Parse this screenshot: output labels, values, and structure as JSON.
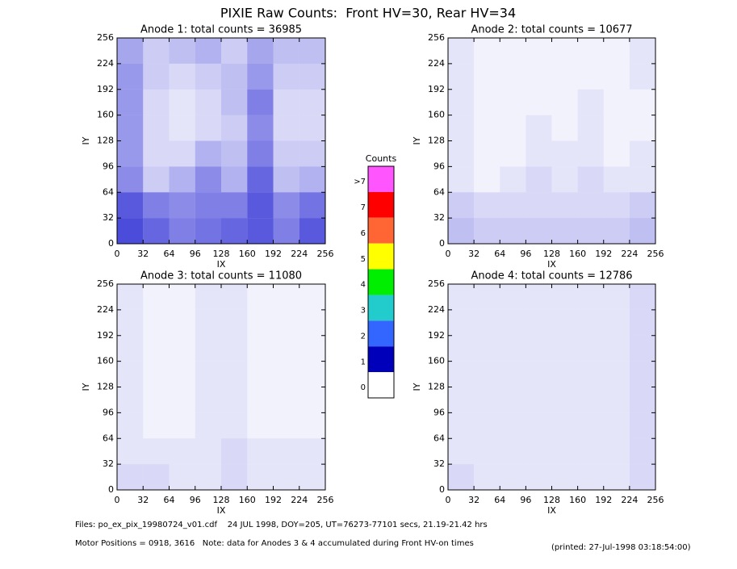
{
  "title": "PIXIE Raw Counts:  Front HV=30, Rear HV=34",
  "chart_data": [
    {
      "type": "heatmap",
      "title": "Anode 1: total counts = 36985",
      "x_label": "IX",
      "y_label": "IY",
      "xlim": [
        0,
        256
      ],
      "ylim": [
        0,
        256
      ],
      "xticks": [
        0,
        32,
        64,
        96,
        128,
        160,
        192,
        224,
        256
      ],
      "yticks": [
        0,
        32,
        64,
        96,
        128,
        160,
        192,
        224,
        256
      ],
      "color": "#0000cc",
      "z": [
        [
          1.4,
          1.2,
          1.0,
          1.1,
          1.2,
          1.3,
          1.0,
          1.3
        ],
        [
          1.3,
          1.0,
          0.9,
          1.0,
          1.0,
          1.3,
          0.9,
          1.1
        ],
        [
          0.9,
          0.4,
          0.6,
          0.9,
          0.6,
          1.2,
          0.5,
          0.6
        ],
        [
          0.8,
          0.3,
          0.3,
          0.6,
          0.5,
          1.0,
          0.4,
          0.4
        ],
        [
          0.8,
          0.3,
          0.2,
          0.3,
          0.4,
          0.9,
          0.3,
          0.3
        ],
        [
          0.8,
          0.3,
          0.2,
          0.3,
          0.5,
          1.0,
          0.3,
          0.3
        ],
        [
          0.8,
          0.4,
          0.3,
          0.4,
          0.5,
          0.8,
          0.4,
          0.4
        ],
        [
          0.7,
          0.4,
          0.5,
          0.6,
          0.4,
          0.7,
          0.5,
          0.5
        ]
      ]
    },
    {
      "type": "heatmap",
      "title": "Anode 2: total counts = 10677",
      "x_label": "IX",
      "y_label": "IY",
      "xlim": [
        0,
        256
      ],
      "ylim": [
        0,
        256
      ],
      "xticks": [
        0,
        32,
        64,
        96,
        128,
        160,
        192,
        224,
        256
      ],
      "yticks": [
        0,
        32,
        64,
        96,
        128,
        160,
        192,
        224,
        256
      ],
      "color": "#0000cc",
      "z": [
        [
          0.5,
          0.4,
          0.4,
          0.4,
          0.4,
          0.4,
          0.4,
          0.5
        ],
        [
          0.4,
          0.3,
          0.3,
          0.3,
          0.3,
          0.3,
          0.3,
          0.4
        ],
        [
          0.2,
          0.1,
          0.2,
          0.3,
          0.2,
          0.3,
          0.2,
          0.2
        ],
        [
          0.2,
          0.1,
          0.1,
          0.2,
          0.2,
          0.2,
          0.1,
          0.2
        ],
        [
          0.2,
          0.1,
          0.1,
          0.2,
          0.1,
          0.2,
          0.1,
          0.1
        ],
        [
          0.2,
          0.1,
          0.1,
          0.1,
          0.1,
          0.2,
          0.1,
          0.1
        ],
        [
          0.2,
          0.1,
          0.1,
          0.1,
          0.1,
          0.1,
          0.1,
          0.2
        ],
        [
          0.2,
          0.1,
          0.1,
          0.1,
          0.1,
          0.1,
          0.1,
          0.2
        ]
      ]
    },
    {
      "type": "heatmap",
      "title": "Anode 3: total counts = 11080",
      "x_label": "IX",
      "y_label": "IY",
      "xlim": [
        0,
        256
      ],
      "ylim": [
        0,
        256
      ],
      "xticks": [
        0,
        32,
        64,
        96,
        128,
        160,
        192,
        224,
        256
      ],
      "yticks": [
        0,
        32,
        64,
        96,
        128,
        160,
        192,
        224,
        256
      ],
      "color": "#0000cc",
      "z": [
        [
          0.3,
          0.3,
          0.2,
          0.2,
          0.3,
          0.2,
          0.2,
          0.2
        ],
        [
          0.2,
          0.2,
          0.2,
          0.2,
          0.3,
          0.2,
          0.2,
          0.2
        ],
        [
          0.2,
          0.1,
          0.1,
          0.2,
          0.2,
          0.1,
          0.1,
          0.1
        ],
        [
          0.2,
          0.1,
          0.1,
          0.2,
          0.2,
          0.1,
          0.1,
          0.1
        ],
        [
          0.2,
          0.1,
          0.1,
          0.2,
          0.2,
          0.1,
          0.1,
          0.1
        ],
        [
          0.2,
          0.1,
          0.1,
          0.2,
          0.2,
          0.1,
          0.1,
          0.1
        ],
        [
          0.2,
          0.1,
          0.1,
          0.2,
          0.2,
          0.1,
          0.1,
          0.1
        ],
        [
          0.2,
          0.1,
          0.1,
          0.2,
          0.2,
          0.1,
          0.1,
          0.1
        ]
      ]
    },
    {
      "type": "heatmap",
      "title": "Anode 4: total counts = 12786",
      "x_label": "IX",
      "y_label": "IY",
      "xlim": [
        0,
        256
      ],
      "ylim": [
        0,
        256
      ],
      "xticks": [
        0,
        32,
        64,
        96,
        128,
        160,
        192,
        224,
        256
      ],
      "yticks": [
        0,
        32,
        64,
        96,
        128,
        160,
        192,
        224,
        256
      ],
      "color": "#0000cc",
      "z": [
        [
          0.3,
          0.2,
          0.2,
          0.2,
          0.2,
          0.2,
          0.2,
          0.3
        ],
        [
          0.2,
          0.2,
          0.2,
          0.2,
          0.2,
          0.2,
          0.2,
          0.3
        ],
        [
          0.2,
          0.2,
          0.2,
          0.2,
          0.2,
          0.2,
          0.2,
          0.3
        ],
        [
          0.2,
          0.2,
          0.2,
          0.2,
          0.2,
          0.2,
          0.2,
          0.3
        ],
        [
          0.2,
          0.2,
          0.2,
          0.2,
          0.2,
          0.2,
          0.2,
          0.3
        ],
        [
          0.2,
          0.2,
          0.2,
          0.2,
          0.2,
          0.2,
          0.2,
          0.3
        ],
        [
          0.2,
          0.2,
          0.2,
          0.2,
          0.2,
          0.2,
          0.2,
          0.3
        ],
        [
          0.2,
          0.2,
          0.2,
          0.2,
          0.2,
          0.2,
          0.2,
          0.3
        ]
      ]
    }
  ],
  "colorbar": {
    "title": "Counts",
    "labels": [
      ">7",
      7,
      6,
      5,
      4,
      3,
      2,
      1,
      0
    ],
    "colors": [
      "#ff55ff",
      "#ff0000",
      "#ff6633",
      "#ffff00",
      "#00ee00",
      "#22cccc",
      "#3366ff",
      "#0000bb",
      "#ffffff"
    ]
  },
  "footer": {
    "files": "Files: po_ex_pix_19980724_v01.cdf    24 JUL 1998, DOY=205, UT=76273-77101 secs, 21.19-21.42 hrs",
    "motor": "Motor Positions = 0918, 3616   Note: data for Anodes 3 & 4 accumulated during Front HV-on times",
    "printed": "(printed: 27-Jul-1998 03:18:54:00)"
  }
}
